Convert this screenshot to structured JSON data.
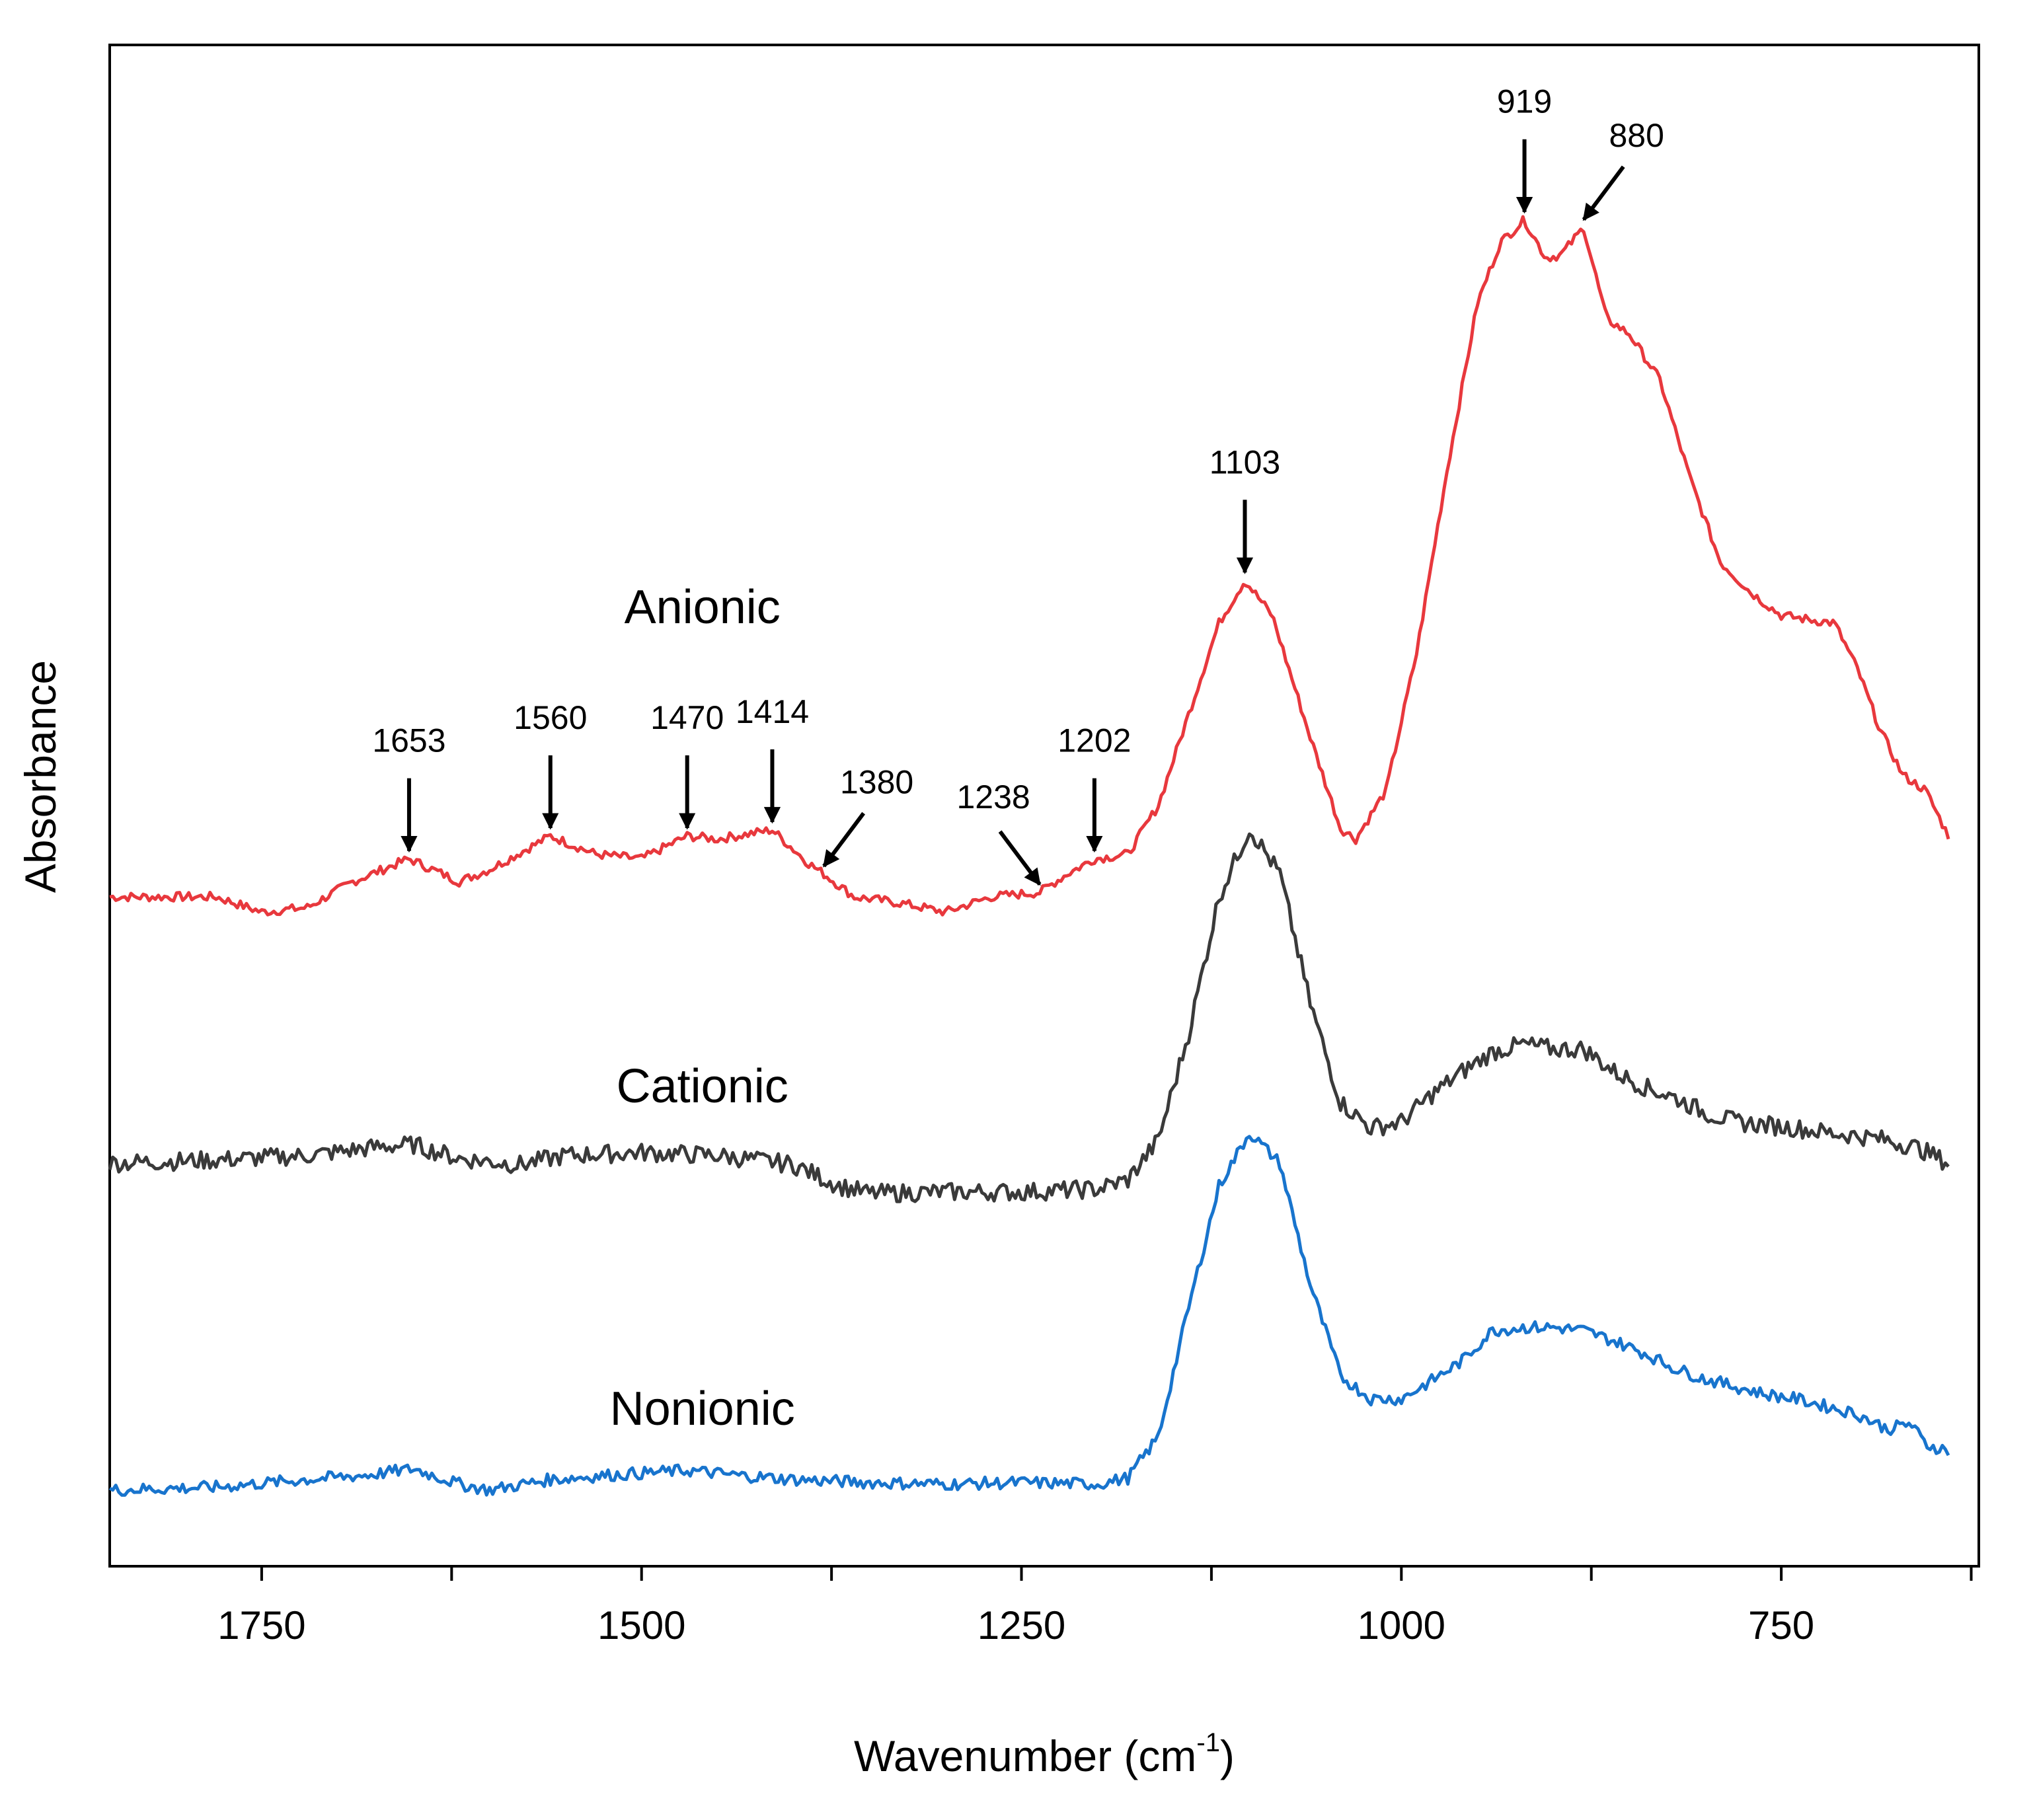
{
  "chart_data": {
    "type": "line",
    "title": "",
    "xlabel": "Wavenumber (cm",
    "xlabel_sup": "-1",
    "xlabel_close": ")",
    "ylabel": "Absorbance",
    "x_reversed": true,
    "xlim": [
      1850,
      620
    ],
    "ylim": [
      0,
      1
    ],
    "xticks": [
      1750,
      1500,
      1250,
      1000,
      750
    ],
    "x_tick_labels": [
      "1750",
      "1500",
      "1250",
      "1000",
      "750"
    ],
    "y_ticks_shown": false,
    "grid": false,
    "series": [
      {
        "name": "Anionic",
        "color": "#e8383d",
        "label_at": [
          1460,
          0.62
        ],
        "noise": 0.003,
        "points": [
          [
            1850,
            0.44
          ],
          [
            1780,
            0.44
          ],
          [
            1750,
            0.43
          ],
          [
            1720,
            0.433
          ],
          [
            1690,
            0.45
          ],
          [
            1653,
            0.465
          ],
          [
            1620,
            0.45
          ],
          [
            1600,
            0.458
          ],
          [
            1560,
            0.48
          ],
          [
            1530,
            0.468
          ],
          [
            1500,
            0.465
          ],
          [
            1470,
            0.48
          ],
          [
            1450,
            0.478
          ],
          [
            1414,
            0.484
          ],
          [
            1390,
            0.462
          ],
          [
            1380,
            0.455
          ],
          [
            1360,
            0.44
          ],
          [
            1330,
            0.436
          ],
          [
            1300,
            0.43
          ],
          [
            1270,
            0.44
          ],
          [
            1238,
            0.443
          ],
          [
            1220,
            0.455
          ],
          [
            1202,
            0.465
          ],
          [
            1180,
            0.468
          ],
          [
            1160,
            0.5
          ],
          [
            1140,
            0.56
          ],
          [
            1120,
            0.62
          ],
          [
            1103,
            0.648
          ],
          [
            1085,
            0.625
          ],
          [
            1060,
            0.545
          ],
          [
            1040,
            0.485
          ],
          [
            1030,
            0.478
          ],
          [
            1010,
            0.51
          ],
          [
            990,
            0.6
          ],
          [
            970,
            0.72
          ],
          [
            950,
            0.83
          ],
          [
            935,
            0.87
          ],
          [
            919,
            0.885
          ],
          [
            905,
            0.86
          ],
          [
            895,
            0.862
          ],
          [
            880,
            0.88
          ],
          [
            865,
            0.82
          ],
          [
            850,
            0.81
          ],
          [
            830,
            0.78
          ],
          [
            810,
            0.715
          ],
          [
            790,
            0.66
          ],
          [
            770,
            0.64
          ],
          [
            750,
            0.625
          ],
          [
            730,
            0.622
          ],
          [
            715,
            0.62
          ],
          [
            700,
            0.59
          ],
          [
            685,
            0.55
          ],
          [
            670,
            0.52
          ],
          [
            655,
            0.51
          ],
          [
            640,
            0.48
          ]
        ]
      },
      {
        "name": "Cationic",
        "color": "#3a3a3a",
        "label_at": [
          1460,
          0.305
        ],
        "noise": 0.006,
        "points": [
          [
            1850,
            0.265
          ],
          [
            1780,
            0.267
          ],
          [
            1720,
            0.27
          ],
          [
            1670,
            0.276
          ],
          [
            1650,
            0.277
          ],
          [
            1620,
            0.268
          ],
          [
            1580,
            0.264
          ],
          [
            1550,
            0.27
          ],
          [
            1500,
            0.272
          ],
          [
            1450,
            0.27
          ],
          [
            1400,
            0.264
          ],
          [
            1370,
            0.25
          ],
          [
            1350,
            0.245
          ],
          [
            1300,
            0.246
          ],
          [
            1250,
            0.246
          ],
          [
            1200,
            0.248
          ],
          [
            1180,
            0.254
          ],
          [
            1160,
            0.28
          ],
          [
            1140,
            0.35
          ],
          [
            1120,
            0.44
          ],
          [
            1100,
            0.485
          ],
          [
            1080,
            0.455
          ],
          [
            1060,
            0.37
          ],
          [
            1040,
            0.305
          ],
          [
            1020,
            0.288
          ],
          [
            1000,
            0.292
          ],
          [
            980,
            0.31
          ],
          [
            960,
            0.325
          ],
          [
            940,
            0.338
          ],
          [
            920,
            0.343
          ],
          [
            900,
            0.34
          ],
          [
            880,
            0.34
          ],
          [
            860,
            0.325
          ],
          [
            840,
            0.315
          ],
          [
            820,
            0.308
          ],
          [
            800,
            0.298
          ],
          [
            780,
            0.292
          ],
          [
            760,
            0.29
          ],
          [
            740,
            0.288
          ],
          [
            720,
            0.285
          ],
          [
            700,
            0.283
          ],
          [
            680,
            0.28
          ],
          [
            660,
            0.275
          ],
          [
            640,
            0.265
          ]
        ]
      },
      {
        "name": "Nonionic",
        "color": "#1874cd",
        "label_at": [
          1460,
          0.093
        ],
        "noise": 0.004,
        "points": [
          [
            1850,
            0.05
          ],
          [
            1780,
            0.052
          ],
          [
            1720,
            0.057
          ],
          [
            1680,
            0.06
          ],
          [
            1650,
            0.064
          ],
          [
            1620,
            0.054
          ],
          [
            1600,
            0.05
          ],
          [
            1560,
            0.057
          ],
          [
            1520,
            0.06
          ],
          [
            1470,
            0.063
          ],
          [
            1440,
            0.06
          ],
          [
            1400,
            0.057
          ],
          [
            1350,
            0.055
          ],
          [
            1300,
            0.054
          ],
          [
            1250,
            0.055
          ],
          [
            1200,
            0.054
          ],
          [
            1180,
            0.058
          ],
          [
            1160,
            0.085
          ],
          [
            1140,
            0.17
          ],
          [
            1120,
            0.25
          ],
          [
            1100,
            0.285
          ],
          [
            1080,
            0.265
          ],
          [
            1060,
            0.185
          ],
          [
            1040,
            0.125
          ],
          [
            1020,
            0.11
          ],
          [
            1000,
            0.11
          ],
          [
            980,
            0.122
          ],
          [
            960,
            0.135
          ],
          [
            940,
            0.155
          ],
          [
            920,
            0.157
          ],
          [
            900,
            0.157
          ],
          [
            880,
            0.155
          ],
          [
            860,
            0.148
          ],
          [
            840,
            0.14
          ],
          [
            820,
            0.13
          ],
          [
            800,
            0.123
          ],
          [
            780,
            0.118
          ],
          [
            760,
            0.113
          ],
          [
            740,
            0.11
          ],
          [
            720,
            0.105
          ],
          [
            700,
            0.1
          ],
          [
            680,
            0.09
          ],
          [
            665,
            0.094
          ],
          [
            655,
            0.08
          ],
          [
            640,
            0.076
          ]
        ]
      }
    ],
    "annotations": [
      {
        "label": "1653",
        "x": 1653,
        "series": "Anionic",
        "arrow": "down"
      },
      {
        "label": "1560",
        "x": 1560,
        "series": "Anionic",
        "arrow": "down"
      },
      {
        "label": "1470",
        "x": 1470,
        "series": "Anionic",
        "arrow": "down"
      },
      {
        "label": "1414",
        "x": 1414,
        "series": "Anionic",
        "arrow": "down"
      },
      {
        "label": "1380",
        "x": 1380,
        "series": "Anionic",
        "arrow": "diag-left"
      },
      {
        "label": "1238",
        "x": 1238,
        "series": "Anionic",
        "arrow": "diag-right"
      },
      {
        "label": "1202",
        "x": 1202,
        "series": "Anionic",
        "arrow": "down"
      },
      {
        "label": "1103",
        "x": 1103,
        "series": "Anionic",
        "arrow": "down"
      },
      {
        "label": "919",
        "x": 919,
        "series": "Anionic",
        "arrow": "down"
      },
      {
        "label": "880",
        "x": 880,
        "series": "Anionic",
        "arrow": "diag-left"
      }
    ]
  }
}
